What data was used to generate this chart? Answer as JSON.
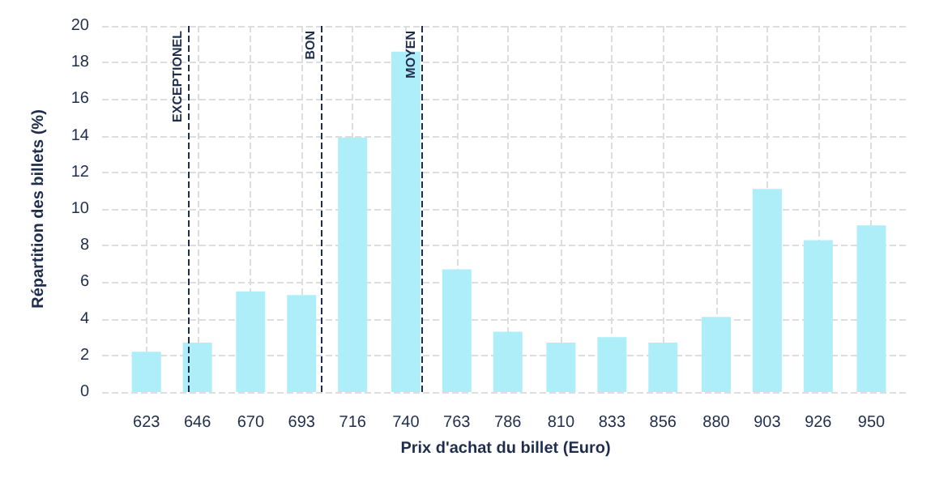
{
  "chart_data": {
    "type": "bar",
    "xlabel": "Prix d'achat du billet (Euro)",
    "ylabel": "Répartition des billets (%)",
    "x": [
      623,
      646,
      670,
      693,
      716,
      740,
      763,
      786,
      810,
      833,
      856,
      880,
      903,
      926,
      950
    ],
    "values": [
      2.2,
      2.7,
      5.5,
      5.3,
      13.9,
      18.6,
      6.7,
      3.3,
      2.7,
      3.0,
      2.7,
      4.1,
      11.1,
      8.3,
      9.1
    ],
    "color": "#aeeef8",
    "xlim": [
      603,
      967
    ],
    "xticks": [
      623,
      646,
      670,
      693,
      716,
      740,
      763,
      786,
      810,
      833,
      856,
      880,
      903,
      926,
      950
    ],
    "ylim": [
      0,
      20
    ],
    "yticks": [
      0,
      2,
      4,
      6,
      8,
      10,
      12,
      14,
      16,
      18,
      20
    ],
    "ref_lines": [
      {
        "axis": "x",
        "value": 642,
        "label": "EXCEPTIONEL",
        "color": "#1f2d4d",
        "line_style": "dashed"
      },
      {
        "axis": "x",
        "value": 702,
        "label": "BON",
        "color": "#1f2d4d",
        "line_style": "dashed"
      },
      {
        "axis": "x",
        "value": 747.5,
        "label": "MOYEN",
        "color": "#1f2d4d",
        "line_style": "dashed"
      }
    ],
    "grid": true
  }
}
